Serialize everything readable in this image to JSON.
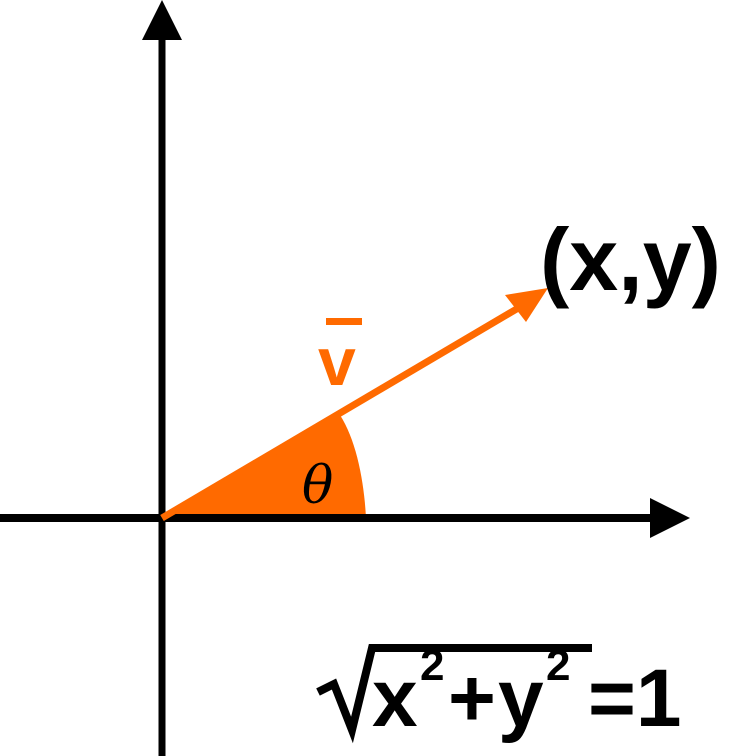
{
  "colors": {
    "axis": "#000000",
    "vector": "#ff6a00",
    "text_black": "#000000",
    "text_orange": "#ff6a00"
  },
  "labels": {
    "point": "(x,y)",
    "vector": "v",
    "angle": "θ",
    "eq_x": "x",
    "eq_exp1": "2",
    "eq_plus": "+",
    "eq_y": "y",
    "eq_exp2": "2",
    "eq_rest": "=1"
  },
  "icons": {
    "radical": "radical-sign-icon"
  }
}
